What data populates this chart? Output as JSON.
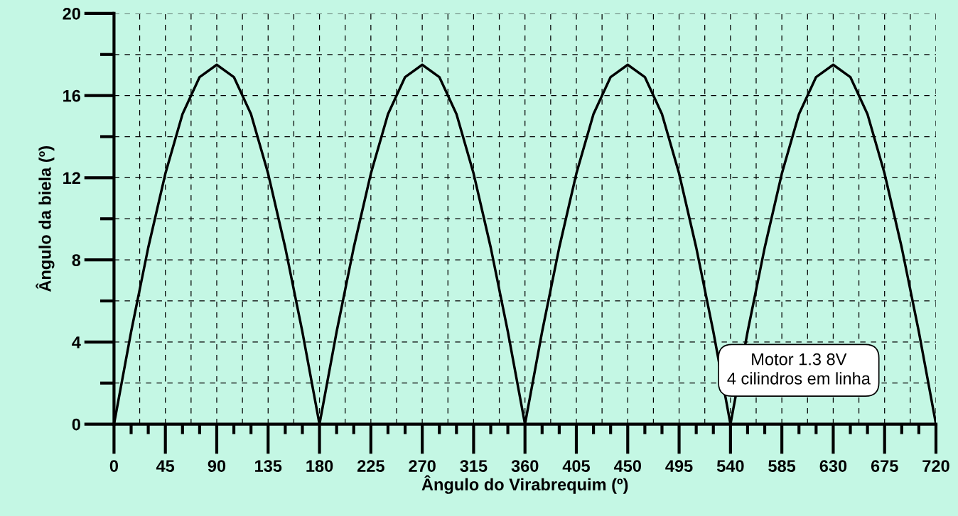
{
  "chart_data": {
    "type": "line",
    "xlabel": "Ângulo do Virabrequim (º)",
    "ylabel": "Ângulo da biela (º)",
    "x": [
      0,
      15,
      30,
      45,
      60,
      75,
      90,
      105,
      120,
      135,
      150,
      165,
      180,
      195,
      210,
      225,
      240,
      255,
      270,
      285,
      300,
      315,
      330,
      345,
      360,
      375,
      390,
      405,
      420,
      435,
      450,
      465,
      480,
      495,
      510,
      525,
      540,
      555,
      570,
      585,
      600,
      615,
      630,
      645,
      660,
      675,
      690,
      705,
      720
    ],
    "series": [
      {
        "color": "#000000",
        "values": [
          0,
          4.5,
          8.6,
          12.2,
          15.1,
          16.9,
          17.5,
          16.9,
          15.1,
          12.2,
          8.6,
          4.5,
          0,
          4.5,
          8.6,
          12.2,
          15.1,
          16.9,
          17.5,
          16.9,
          15.1,
          12.2,
          8.6,
          4.5,
          0,
          4.5,
          8.6,
          12.2,
          15.1,
          16.9,
          17.5,
          16.9,
          15.1,
          12.2,
          8.6,
          4.5,
          0,
          4.5,
          8.6,
          12.2,
          15.1,
          16.9,
          17.5,
          16.9,
          15.1,
          12.2,
          8.6,
          4.5,
          0
        ]
      }
    ],
    "xlim": [
      0,
      720
    ],
    "ylim": [
      0,
      20
    ],
    "xticks": [
      0,
      {
        "value": 15,
        "label": null
      },
      {
        "value": 30,
        "label": null
      },
      45,
      {
        "value": 60,
        "label": null
      },
      {
        "value": 75,
        "label": null
      },
      90,
      {
        "value": 105,
        "label": null
      },
      {
        "value": 120,
        "label": null
      },
      135,
      {
        "value": 150,
        "label": null
      },
      {
        "value": 165,
        "label": null
      },
      180,
      {
        "value": 195,
        "label": null
      },
      {
        "value": 210,
        "label": null
      },
      225,
      {
        "value": 240,
        "label": null
      },
      {
        "value": 255,
        "label": null
      },
      270,
      {
        "value": 285,
        "label": null
      },
      {
        "value": 300,
        "label": null
      },
      315,
      {
        "value": 330,
        "label": null
      },
      {
        "value": 345,
        "label": null
      },
      360,
      {
        "value": 375,
        "label": null
      },
      {
        "value": 390,
        "label": null
      },
      405,
      {
        "value": 420,
        "label": null
      },
      {
        "value": 435,
        "label": null
      },
      450,
      {
        "value": 465,
        "label": null
      },
      {
        "value": 480,
        "label": null
      },
      495,
      {
        "value": 510,
        "label": null
      },
      {
        "value": 525,
        "label": null
      },
      540,
      {
        "value": 555,
        "label": null
      },
      {
        "value": 570,
        "label": null
      },
      585,
      {
        "value": 600,
        "label": null
      },
      {
        "value": 615,
        "label": null
      },
      630,
      {
        "value": 645,
        "label": null
      },
      {
        "value": 660,
        "label": null
      },
      675,
      {
        "value": 690,
        "label": null
      },
      {
        "value": 705,
        "label": null
      },
      720
    ],
    "yticks": [
      0,
      {
        "value": 2,
        "label": null
      },
      4,
      {
        "value": 6,
        "label": null
      },
      8,
      {
        "value": 10,
        "label": null
      },
      12,
      {
        "value": 14,
        "label": null
      },
      16,
      {
        "value": 18,
        "label": null
      },
      20
    ],
    "grid": true,
    "line_style": "solid",
    "marker": "none",
    "legend": false,
    "annotations": [
      "Motor 1.3 8V\n4 cilindros em linha"
    ]
  }
}
